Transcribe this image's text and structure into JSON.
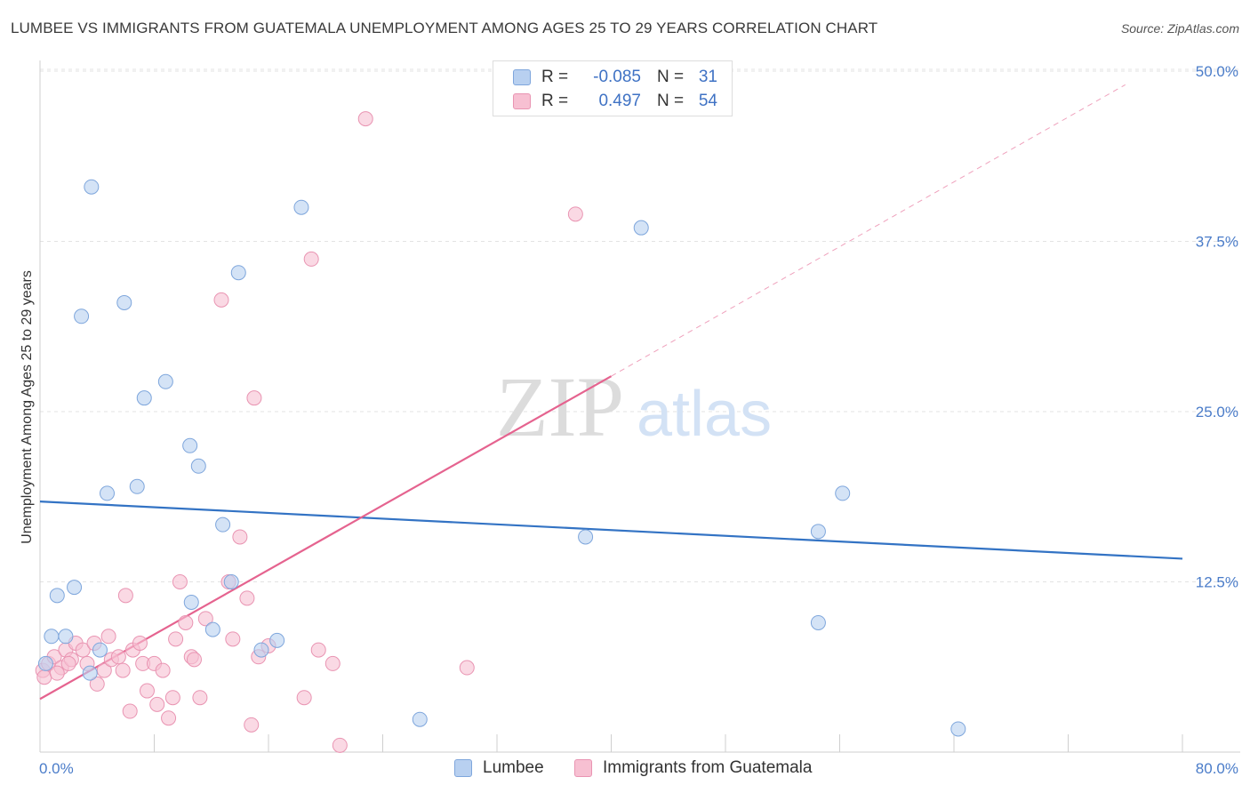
{
  "title": "LUMBEE VS IMMIGRANTS FROM GUATEMALA UNEMPLOYMENT AMONG AGES 25 TO 29 YEARS CORRELATION CHART",
  "source": "Source: ZipAtlas.com",
  "watermark": {
    "zip": "ZIP",
    "atlas": "atlas"
  },
  "legend": {
    "series": [
      {
        "name": "Lumbee",
        "r_label": "R =",
        "r_value": "-0.085",
        "n_label": "N =",
        "n_value": "31"
      },
      {
        "name": "Immigrants from Guatemala",
        "r_label": "R =",
        "r_value": "0.497",
        "n_label": "N =",
        "n_value": "54"
      }
    ]
  },
  "colors": {
    "lumbee_fill": "#b8d0f0",
    "lumbee_stroke": "#7ea6dc",
    "lumbee_line": "#3373c4",
    "guat_fill": "#f7c0d2",
    "guat_stroke": "#e994b2",
    "guat_line": "#e5638f",
    "tick_text": "#4a7cc9",
    "grid": "#e3e3e3"
  },
  "chart_data": {
    "type": "scatter",
    "xlabel": "",
    "ylabel": "Unemployment Among Ages 25 to 29 years",
    "xlim": [
      0,
      80
    ],
    "ylim": [
      0,
      50
    ],
    "x_tick_labels": [
      {
        "value": 0,
        "label": "0.0%"
      },
      {
        "value": 80,
        "label": "80.0%"
      }
    ],
    "y_tick_labels": [
      {
        "value": 12.5,
        "label": "12.5%"
      },
      {
        "value": 25,
        "label": "25.0%"
      },
      {
        "value": 37.5,
        "label": "37.5%"
      },
      {
        "value": 50,
        "label": "50.0%"
      }
    ],
    "series": [
      {
        "name": "Lumbee",
        "points": [
          [
            0.4,
            6.5
          ],
          [
            0.8,
            8.5
          ],
          [
            1.2,
            11.5
          ],
          [
            1.8,
            8.5
          ],
          [
            2.4,
            12.1
          ],
          [
            3.6,
            41.5
          ],
          [
            2.9,
            32.0
          ],
          [
            5.9,
            33.0
          ],
          [
            4.7,
            19.0
          ],
          [
            7.3,
            26.0
          ],
          [
            6.8,
            19.5
          ],
          [
            8.8,
            27.2
          ],
          [
            10.5,
            22.5
          ],
          [
            10.6,
            11.0
          ],
          [
            11.1,
            21.0
          ],
          [
            12.1,
            9.0
          ],
          [
            12.8,
            16.7
          ],
          [
            13.9,
            35.2
          ],
          [
            13.4,
            12.5
          ],
          [
            15.5,
            7.5
          ],
          [
            16.6,
            8.2
          ],
          [
            18.3,
            40.0
          ],
          [
            3.5,
            5.8
          ],
          [
            4.2,
            7.5
          ],
          [
            26.6,
            2.4
          ],
          [
            38.2,
            15.8
          ],
          [
            42.1,
            38.5
          ],
          [
            54.5,
            16.2
          ],
          [
            56.2,
            19.0
          ],
          [
            54.5,
            9.5
          ],
          [
            64.3,
            1.7
          ]
        ],
        "trend": {
          "x0": 0,
          "y0": 18.4,
          "x1": 80,
          "y1": 14.2
        }
      },
      {
        "name": "Immigrants from Guatemala",
        "points": [
          [
            0.2,
            6.0
          ],
          [
            0.6,
            6.5
          ],
          [
            1.0,
            7.0
          ],
          [
            1.5,
            6.2
          ],
          [
            1.8,
            7.5
          ],
          [
            2.2,
            6.8
          ],
          [
            2.5,
            8.0
          ],
          [
            3.0,
            7.5
          ],
          [
            3.3,
            6.5
          ],
          [
            3.8,
            8.0
          ],
          [
            4.0,
            5.0
          ],
          [
            4.5,
            6.0
          ],
          [
            4.8,
            8.5
          ],
          [
            5.0,
            6.8
          ],
          [
            5.5,
            7.0
          ],
          [
            5.8,
            6.0
          ],
          [
            6.0,
            11.5
          ],
          [
            6.5,
            7.5
          ],
          [
            7.0,
            8.0
          ],
          [
            7.2,
            6.5
          ],
          [
            7.5,
            4.5
          ],
          [
            8.0,
            6.5
          ],
          [
            8.2,
            3.5
          ],
          [
            8.6,
            6.0
          ],
          [
            9.0,
            2.5
          ],
          [
            9.3,
            4.0
          ],
          [
            9.5,
            8.3
          ],
          [
            9.8,
            12.5
          ],
          [
            10.2,
            9.5
          ],
          [
            10.6,
            7.0
          ],
          [
            10.8,
            6.8
          ],
          [
            11.2,
            4.0
          ],
          [
            11.6,
            9.8
          ],
          [
            12.7,
            33.2
          ],
          [
            13.2,
            12.5
          ],
          [
            13.5,
            8.3
          ],
          [
            14.0,
            15.8
          ],
          [
            14.5,
            11.3
          ],
          [
            14.8,
            2.0
          ],
          [
            15.0,
            26.0
          ],
          [
            15.3,
            7.0
          ],
          [
            16.0,
            7.8
          ],
          [
            18.5,
            4.0
          ],
          [
            19.0,
            36.2
          ],
          [
            19.5,
            7.5
          ],
          [
            20.5,
            6.5
          ],
          [
            21.0,
            0.5
          ],
          [
            22.8,
            46.5
          ],
          [
            29.9,
            6.2
          ],
          [
            37.5,
            39.5
          ],
          [
            0.3,
            5.5
          ],
          [
            1.2,
            5.8
          ],
          [
            2.0,
            6.5
          ],
          [
            6.3,
            3.0
          ]
        ],
        "trend": {
          "x0": 0,
          "y0": 3.9,
          "x1": 40,
          "y1": 27.6,
          "dash_to": {
            "x": 76,
            "y": 49.0
          }
        }
      }
    ]
  }
}
